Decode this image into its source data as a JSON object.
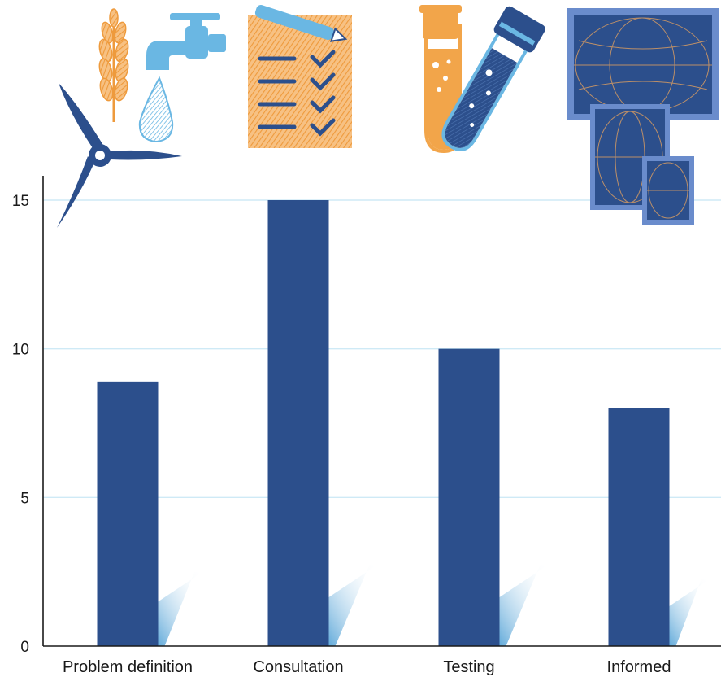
{
  "chart_data": {
    "type": "bar",
    "categories": [
      "Problem definition",
      "Consultation",
      "Testing",
      "Informed"
    ],
    "values": [
      8.9,
      15,
      10,
      8
    ],
    "ylim": [
      0,
      15
    ],
    "yticks": [
      0,
      5,
      10,
      15
    ],
    "grid": true,
    "title": "",
    "xlabel": "",
    "ylabel": ""
  },
  "colors": {
    "bar": "#2c4f8c",
    "grid": "#cfeaf6",
    "axis": "#1a1a1a",
    "shadow": "#6fb1dc",
    "icon_orange": "#f2a54a",
    "icon_blue": "#6ab7e3",
    "icon_navy": "#2c4f8c"
  },
  "icons": [
    "wind-turbine-icon",
    "wheat-icon",
    "water-tap-icon",
    "water-drop-icon",
    "checklist-icon",
    "test-tubes-icon",
    "globe-screens-icon"
  ]
}
